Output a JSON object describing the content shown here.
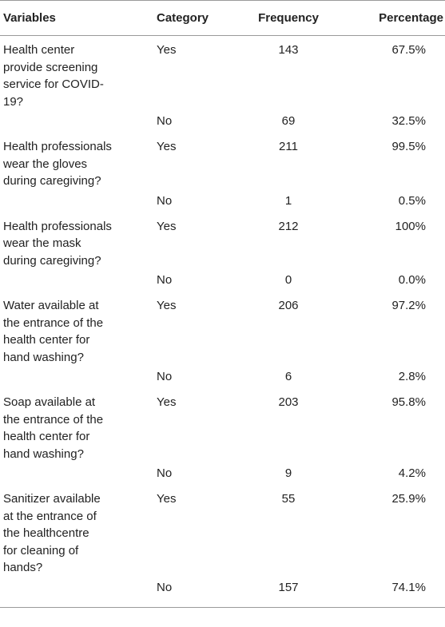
{
  "headers": {
    "variables": "Variables",
    "category": "Category",
    "frequency": "Frequency",
    "percentage": "Percentage"
  },
  "rows": [
    {
      "variable": "Health center provide screening service for COVID-19?",
      "yes": {
        "category": "Yes",
        "frequency": "143",
        "percentage": "67.5%"
      },
      "no": {
        "category": "No",
        "frequency": "69",
        "percentage": "32.5%"
      }
    },
    {
      "variable": "Health professionals wear the gloves during caregiving?",
      "yes": {
        "category": "Yes",
        "frequency": "211",
        "percentage": "99.5%"
      },
      "no": {
        "category": "No",
        "frequency": "1",
        "percentage": "0.5%"
      }
    },
    {
      "variable": "Health professionals wear the mask during caregiving?",
      "yes": {
        "category": "Yes",
        "frequency": "212",
        "percentage": "100%"
      },
      "no": {
        "category": "No",
        "frequency": "0",
        "percentage": "0.0%"
      }
    },
    {
      "variable": "Water available at the entrance of the health center for hand washing?",
      "yes": {
        "category": "Yes",
        "frequency": "206",
        "percentage": "97.2%"
      },
      "no": {
        "category": "No",
        "frequency": "6",
        "percentage": "2.8%"
      }
    },
    {
      "variable": "Soap available at the entrance of the health center for hand washing?",
      "yes": {
        "category": "Yes",
        "frequency": "203",
        "percentage": "95.8%"
      },
      "no": {
        "category": "No",
        "frequency": "9",
        "percentage": "4.2%"
      }
    },
    {
      "variable": "Sanitizer available at the entrance of the healthcentre for cleaning of hands?",
      "yes": {
        "category": "Yes",
        "frequency": "55",
        "percentage": "25.9%"
      },
      "no": {
        "category": "No",
        "frequency": "157",
        "percentage": "74.1%"
      }
    }
  ]
}
